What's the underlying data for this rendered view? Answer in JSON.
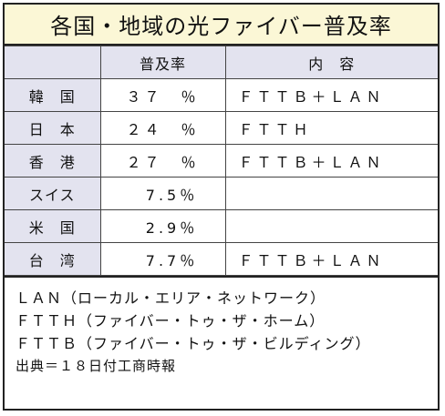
{
  "title": "各国・地域の光ファイバー普及率",
  "header": {
    "col1": "",
    "col2": "普及率",
    "col3": "内　容"
  },
  "rows": [
    {
      "country": "韓　国",
      "rate": "３７　％",
      "content": "ＦＴＴＢ＋ＬＡＮ"
    },
    {
      "country": "日　本",
      "rate": "２４　％",
      "content": "ＦＴＴＨ"
    },
    {
      "country": "香　港",
      "rate": "２７　％",
      "content": "ＦＴＴＢ＋ＬＡＮ"
    },
    {
      "country": "スイス",
      "rate": "　7.5％",
      "content": ""
    },
    {
      "country": "米　国",
      "rate": "　2.9％",
      "content": ""
    },
    {
      "country": "台　湾",
      "rate": "　7.7％",
      "content": "ＦＴＴＢ＋ＬＡＮ"
    }
  ],
  "notes": [
    "ＬＡＮ（ローカル・エリア・ネットワーク）",
    "ＦＴＴＨ（ファイバー・トゥ・ザ・ホーム）",
    "ＦＴＴＢ（ファイバー・トゥ・ザ・ビルディング）"
  ],
  "source": "出典＝１８日付工商時報"
}
